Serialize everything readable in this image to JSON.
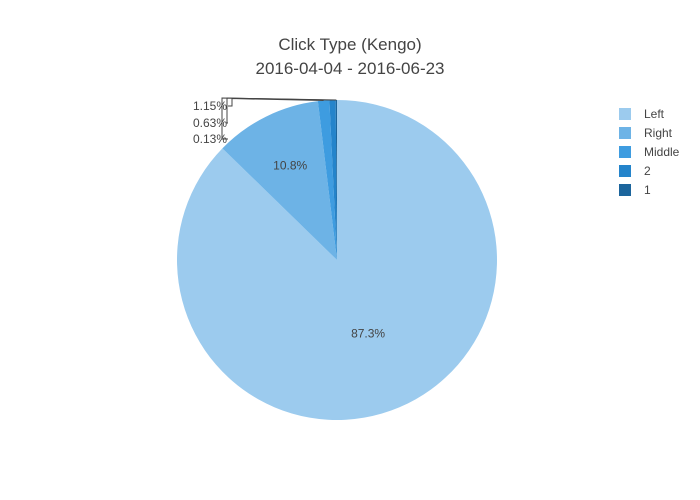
{
  "chart_data": {
    "type": "pie",
    "title_line1": "Click Type (Kengo)",
    "title_line2": "2016-04-04 - 2016-06-23",
    "slices": [
      {
        "label": "Left",
        "percent": 87.3,
        "percent_text": "87.3%",
        "color": "#9ccbee"
      },
      {
        "label": "Right",
        "percent": 10.8,
        "percent_text": "10.8%",
        "color": "#6db3e6"
      },
      {
        "label": "Middle",
        "percent": 1.15,
        "percent_text": "1.15%",
        "color": "#3e9ce0"
      },
      {
        "label": "2",
        "percent": 0.63,
        "percent_text": "0.63%",
        "color": "#2484cb"
      },
      {
        "label": "1",
        "percent": 0.13,
        "percent_text": "0.13%",
        "color": "#1c659c"
      }
    ],
    "legend_placement": "top-right",
    "direction": "clockwise",
    "start": "12 o'clock"
  }
}
